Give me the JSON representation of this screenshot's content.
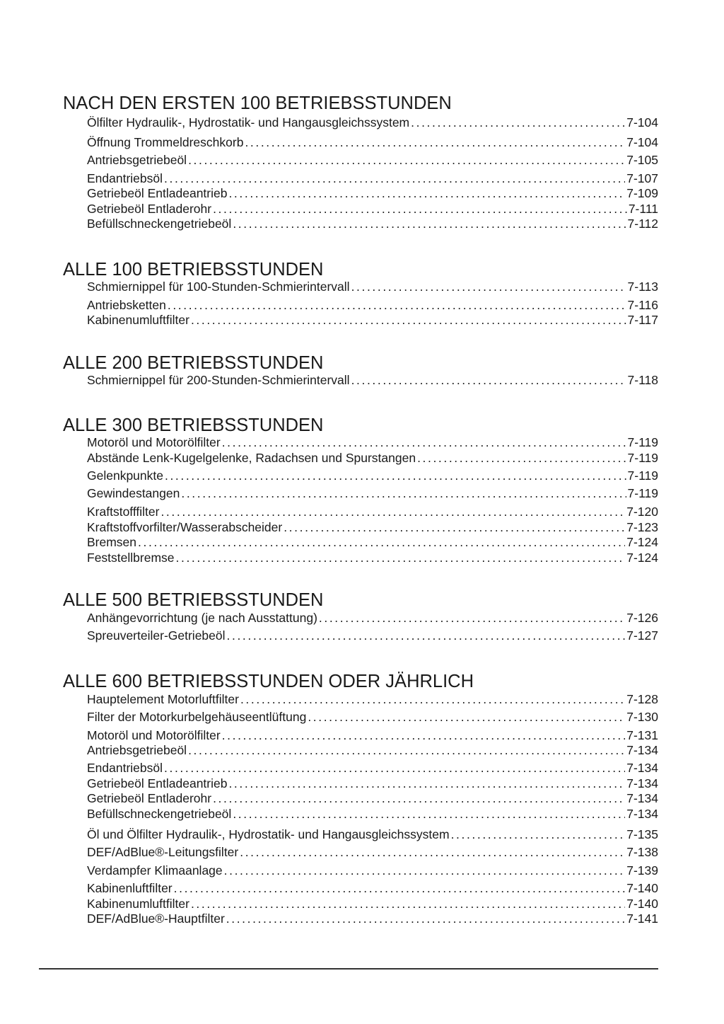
{
  "sections": [
    {
      "title": "NACH DEN ERSTEN 100 BETRIEBSSTUNDEN",
      "entries": [
        {
          "label": "Ölfilter Hydraulik-, Hydrostatik- und Hangausgleichssystem",
          "page": "7-104"
        },
        {
          "label": "Öffnung Trommeldreschkorb",
          "page": "7-104"
        },
        {
          "label": "Antriebsgetriebeöl",
          "page": "7-105"
        },
        {
          "label": "Endantriebsöl",
          "page": "7-107"
        },
        {
          "label": "Getriebeöl Entladeantrieb",
          "page": "7-109"
        },
        {
          "label": "Getriebeöl Entladerohr",
          "page": "7-111"
        },
        {
          "label": "Befüllschneckengetriebeöl",
          "page": "7-112"
        }
      ]
    },
    {
      "title": "ALLE 100 BETRIEBSSTUNDEN",
      "entries": [
        {
          "label": "Schmiernippel für 100-Stunden-Schmierintervall",
          "page": "7-113"
        },
        {
          "label": "Antriebsketten",
          "page": "7-116"
        },
        {
          "label": "Kabinenumluftfilter",
          "page": "7-117"
        }
      ]
    },
    {
      "title": "ALLE 200 BETRIEBSSTUNDEN",
      "entries": [
        {
          "label": "Schmiernippel für 200-Stunden-Schmierintervall",
          "page": "7-118"
        }
      ]
    },
    {
      "title": "ALLE 300 BETRIEBSSTUNDEN",
      "entries": [
        {
          "label": "Motoröl und Motorölfilter",
          "page": "7-119"
        },
        {
          "label": "Abstände Lenk-Kugelgelenke, Radachsen und Spurstangen",
          "page": "7-119"
        },
        {
          "label": "Gelenkpunkte",
          "page": "7-119"
        },
        {
          "label": "Gewindestangen",
          "page": "7-119"
        },
        {
          "label": "Kraftstofffilter",
          "page": "7-120"
        },
        {
          "label": "Kraftstoffvorfilter/Wasserabscheider",
          "page": "7-123"
        },
        {
          "label": "Bremsen",
          "page": "7-124"
        },
        {
          "label": "Feststellbremse",
          "page": "7-124"
        }
      ]
    },
    {
      "title": "ALLE 500 BETRIEBSSTUNDEN",
      "entries": [
        {
          "label": "Anhängevorrichtung (je nach Ausstattung)",
          "page": "7-126"
        },
        {
          "label": "Spreuverteiler-Getriebeöl",
          "page": "7-127"
        }
      ]
    },
    {
      "title": "ALLE 600 BETRIEBSSTUNDEN ODER JÄHRLICH",
      "entries": [
        {
          "label": "Hauptelement Motorluftfilter",
          "page": "7-128"
        },
        {
          "label": "Filter der Motorkurbelgehäuseentlüftung",
          "page": "7-130"
        },
        {
          "label": "Motoröl und Motorölfilter",
          "page": "7-131"
        },
        {
          "label": "Antriebsgetriebeöl",
          "page": "7-134"
        },
        {
          "label": "Endantriebsöl",
          "page": "7-134"
        },
        {
          "label": "Getriebeöl Entladeantrieb",
          "page": "7-134"
        },
        {
          "label": "Getriebeöl Entladerohr",
          "page": "7-134"
        },
        {
          "label": "Befüllschneckengetriebeöl",
          "page": "7-134"
        },
        {
          "label": "Öl und Ölfilter Hydraulik-, Hydrostatik- und Hangausgleichssystem",
          "page": "7-135"
        },
        {
          "label": "DEF/AdBlue®-Leitungsfilter",
          "page": "7-138"
        },
        {
          "label": "Verdampfer Klimaanlage",
          "page": "7-139"
        },
        {
          "label": "Kabinenluftfilter",
          "page": "7-140"
        },
        {
          "label": "Kabinenumluftfilter",
          "page": "7-140"
        },
        {
          "label": "DEF/AdBlue®-Hauptfilter",
          "page": "7-141"
        }
      ]
    }
  ]
}
